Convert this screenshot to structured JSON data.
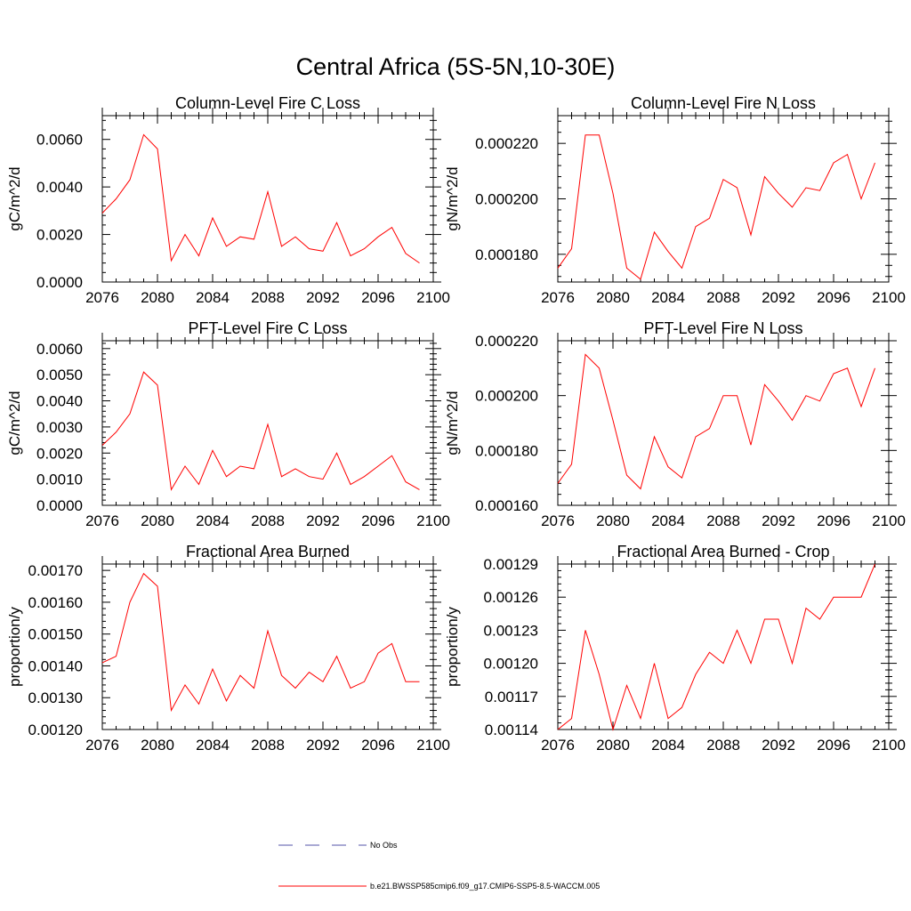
{
  "figure_title": "Central Africa (5S-5N,10-30E)",
  "chart_data": [
    {
      "type": "line",
      "title": "Column-Level Fire C Loss",
      "xlabel": "",
      "ylabel": "gC/m^2/d",
      "xlim": [
        2076,
        2100
      ],
      "ylim": [
        0,
        0.007
      ],
      "x_ticks": [
        "2076",
        "2080",
        "2084",
        "2088",
        "2092",
        "2096",
        "2100"
      ],
      "y_ticks": [
        "0.0000",
        "0.0020",
        "0.0040",
        "0.0060"
      ],
      "series": [
        {
          "name": "b.e21.BWSSP585cmip6.f09_g17.CMIP6-SSP5-8.5-WACCM.005",
          "color": "#ff0000",
          "x": [
            2076,
            2077,
            2078,
            2079,
            2080,
            2081,
            2082,
            2083,
            2084,
            2085,
            2086,
            2087,
            2088,
            2089,
            2090,
            2091,
            2092,
            2093,
            2094,
            2095,
            2096,
            2097,
            2098,
            2099
          ],
          "values": [
            0.0029,
            0.0035,
            0.0043,
            0.0062,
            0.0056,
            0.0009,
            0.002,
            0.0011,
            0.0027,
            0.0015,
            0.0019,
            0.0018,
            0.0038,
            0.0015,
            0.0019,
            0.0014,
            0.0013,
            0.0025,
            0.0011,
            0.0014,
            0.0019,
            0.0023,
            0.0012,
            0.0008
          ]
        }
      ]
    },
    {
      "type": "line",
      "title": "Column-Level Fire N Loss",
      "xlabel": "",
      "ylabel": "gN/m^2/d",
      "xlim": [
        2076,
        2100
      ],
      "ylim": [
        0.00017,
        0.00023
      ],
      "x_ticks": [
        "2076",
        "2080",
        "2084",
        "2088",
        "2092",
        "2096",
        "2100"
      ],
      "y_ticks": [
        "0.000180",
        "0.000200",
        "0.000220"
      ],
      "series": [
        {
          "name": "b.e21.BWSSP585cmip6.f09_g17.CMIP6-SSP5-8.5-WACCM.005",
          "color": "#ff0000",
          "x": [
            2076,
            2077,
            2078,
            2079,
            2080,
            2081,
            2082,
            2083,
            2084,
            2085,
            2086,
            2087,
            2088,
            2089,
            2090,
            2091,
            2092,
            2093,
            2094,
            2095,
            2096,
            2097,
            2098,
            2099
          ],
          "values": [
            0.000175,
            0.000182,
            0.000223,
            0.000223,
            0.000202,
            0.000175,
            0.000171,
            0.000188,
            0.000181,
            0.000175,
            0.00019,
            0.000193,
            0.000207,
            0.000204,
            0.000187,
            0.000208,
            0.000202,
            0.000197,
            0.000204,
            0.000203,
            0.000213,
            0.000216,
            0.0002,
            0.000213
          ]
        }
      ]
    },
    {
      "type": "line",
      "title": "PFT-Level Fire C Loss",
      "xlabel": "",
      "ylabel": "gC/m^2/d",
      "xlim": [
        2076,
        2100
      ],
      "ylim": [
        0,
        0.0063
      ],
      "x_ticks": [
        "2076",
        "2080",
        "2084",
        "2088",
        "2092",
        "2096",
        "2100"
      ],
      "y_ticks": [
        "0.0000",
        "0.0010",
        "0.0020",
        "0.0030",
        "0.0040",
        "0.0050",
        "0.0060"
      ],
      "series": [
        {
          "name": "b.e21.BWSSP585cmip6.f09_g17.CMIP6-SSP5-8.5-WACCM.005",
          "color": "#ff0000",
          "x": [
            2076,
            2077,
            2078,
            2079,
            2080,
            2081,
            2082,
            2083,
            2084,
            2085,
            2086,
            2087,
            2088,
            2089,
            2090,
            2091,
            2092,
            2093,
            2094,
            2095,
            2096,
            2097,
            2098,
            2099
          ],
          "values": [
            0.0023,
            0.0028,
            0.0035,
            0.0051,
            0.0046,
            0.0006,
            0.0015,
            0.0008,
            0.0021,
            0.0011,
            0.0015,
            0.0014,
            0.0031,
            0.0011,
            0.0014,
            0.0011,
            0.001,
            0.002,
            0.0008,
            0.0011,
            0.0015,
            0.0019,
            0.0009,
            0.0006
          ]
        }
      ]
    },
    {
      "type": "line",
      "title": "PFT-Level Fire N Loss",
      "xlabel": "",
      "ylabel": "gN/m^2/d",
      "xlim": [
        2076,
        2100
      ],
      "ylim": [
        0.00016,
        0.00022
      ],
      "x_ticks": [
        "2076",
        "2080",
        "2084",
        "2088",
        "2092",
        "2096",
        "2100"
      ],
      "y_ticks": [
        "0.000160",
        "0.000180",
        "0.000200",
        "0.000220"
      ],
      "series": [
        {
          "name": "b.e21.BWSSP585cmip6.f09_g17.CMIP6-SSP5-8.5-WACCM.005",
          "color": "#ff0000",
          "x": [
            2076,
            2077,
            2078,
            2079,
            2080,
            2081,
            2082,
            2083,
            2084,
            2085,
            2086,
            2087,
            2088,
            2089,
            2090,
            2091,
            2092,
            2093,
            2094,
            2095,
            2096,
            2097,
            2098,
            2099
          ],
          "values": [
            0.000168,
            0.000175,
            0.000215,
            0.00021,
            0.000191,
            0.000171,
            0.000166,
            0.000185,
            0.000174,
            0.00017,
            0.000185,
            0.000188,
            0.0002,
            0.0002,
            0.000182,
            0.000204,
            0.000198,
            0.000191,
            0.0002,
            0.000198,
            0.000208,
            0.00021,
            0.000196,
            0.00021
          ]
        }
      ]
    },
    {
      "type": "line",
      "title": "Fractional Area Burned",
      "xlabel": "",
      "ylabel": "proportion/y",
      "xlim": [
        2076,
        2100
      ],
      "ylim": [
        0.0012,
        0.00172
      ],
      "x_ticks": [
        "2076",
        "2080",
        "2084",
        "2088",
        "2092",
        "2096",
        "2100"
      ],
      "y_ticks": [
        "0.00120",
        "0.00130",
        "0.00140",
        "0.00150",
        "0.00160",
        "0.00170"
      ],
      "series": [
        {
          "name": "b.e21.BWSSP585cmip6.f09_g17.CMIP6-SSP5-8.5-WACCM.005",
          "color": "#ff0000",
          "x": [
            2076,
            2077,
            2078,
            2079,
            2080,
            2081,
            2082,
            2083,
            2084,
            2085,
            2086,
            2087,
            2088,
            2089,
            2090,
            2091,
            2092,
            2093,
            2094,
            2095,
            2096,
            2097,
            2098,
            2099
          ],
          "values": [
            0.00141,
            0.00143,
            0.0016,
            0.00169,
            0.00165,
            0.00126,
            0.00134,
            0.00128,
            0.00139,
            0.00129,
            0.00137,
            0.00133,
            0.00151,
            0.00137,
            0.00133,
            0.00138,
            0.00135,
            0.00143,
            0.00133,
            0.00135,
            0.00144,
            0.00147,
            0.00135,
            0.00135
          ]
        }
      ]
    },
    {
      "type": "line",
      "title": "Fractional Area Burned - Crop",
      "xlabel": "",
      "ylabel": "proportion/y",
      "xlim": [
        2076,
        2100
      ],
      "ylim": [
        0.00114,
        0.00129
      ],
      "x_ticks": [
        "2076",
        "2080",
        "2084",
        "2088",
        "2092",
        "2096",
        "2100"
      ],
      "y_ticks": [
        "0.00114",
        "0.00117",
        "0.00120",
        "0.00123",
        "0.00126",
        "0.00129"
      ],
      "series": [
        {
          "name": "b.e21.BWSSP585cmip6.f09_g17.CMIP6-SSP5-8.5-WACCM.005",
          "color": "#ff0000",
          "x": [
            2076,
            2077,
            2078,
            2079,
            2080,
            2081,
            2082,
            2083,
            2084,
            2085,
            2086,
            2087,
            2088,
            2089,
            2090,
            2091,
            2092,
            2093,
            2094,
            2095,
            2096,
            2097,
            2098,
            2099
          ],
          "values": [
            0.00114,
            0.00115,
            0.00123,
            0.00119,
            0.00114,
            0.00118,
            0.00115,
            0.0012,
            0.00115,
            0.00116,
            0.00119,
            0.00121,
            0.0012,
            0.00123,
            0.0012,
            0.00124,
            0.00124,
            0.0012,
            0.00125,
            0.00124,
            0.00126,
            0.00126,
            0.00126,
            0.00129
          ]
        }
      ]
    }
  ],
  "legend": {
    "entries": [
      {
        "label": "No Obs",
        "color": "#5555aa",
        "style": "dashed"
      },
      {
        "label": "b.e21.BWSSP585cmip6.f09_g17.CMIP6-SSP5-8.5-WACCM.005",
        "color": "#ff0000",
        "style": "solid"
      }
    ]
  }
}
